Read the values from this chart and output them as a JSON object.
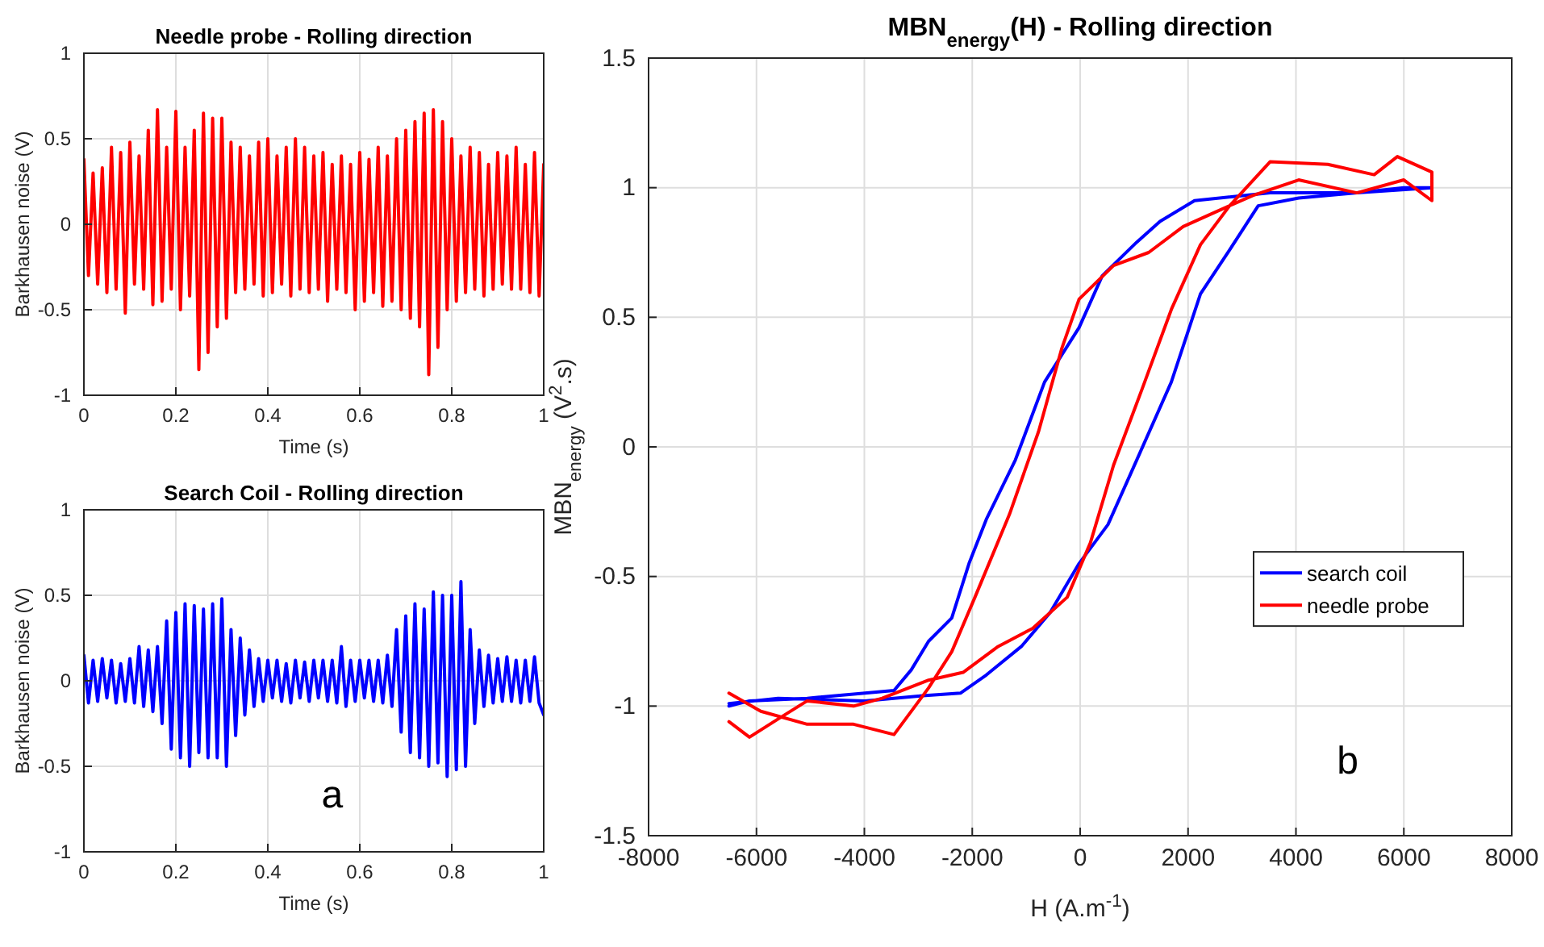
{
  "chart_data": [
    {
      "type": "line",
      "title": "Needle probe - Rolling direction",
      "xlabel": "Time (s)",
      "ylabel": "Barkhausen noise (V)",
      "xlim": [
        0,
        1
      ],
      "xticks": [
        0,
        0.2,
        0.4,
        0.6,
        0.8,
        1
      ],
      "ylim": [
        -1,
        1
      ],
      "yticks": [
        -1,
        -0.5,
        0,
        0.5,
        1
      ],
      "grid": true,
      "x": [
        0,
        0.01,
        0.02,
        0.03,
        0.04,
        0.05,
        0.06,
        0.07,
        0.08,
        0.09,
        0.1,
        0.11,
        0.12,
        0.13,
        0.14,
        0.15,
        0.16,
        0.17,
        0.18,
        0.19,
        0.2,
        0.21,
        0.22,
        0.23,
        0.24,
        0.25,
        0.26,
        0.27,
        0.28,
        0.29,
        0.3,
        0.31,
        0.32,
        0.33,
        0.34,
        0.35,
        0.36,
        0.37,
        0.38,
        0.39,
        0.4,
        0.41,
        0.42,
        0.43,
        0.44,
        0.45,
        0.46,
        0.47,
        0.48,
        0.49,
        0.5,
        0.51,
        0.52,
        0.53,
        0.54,
        0.55,
        0.56,
        0.57,
        0.58,
        0.59,
        0.6,
        0.61,
        0.62,
        0.63,
        0.64,
        0.65,
        0.66,
        0.67,
        0.68,
        0.69,
        0.7,
        0.71,
        0.72,
        0.73,
        0.74,
        0.75,
        0.76,
        0.77,
        0.78,
        0.79,
        0.8,
        0.81,
        0.82,
        0.83,
        0.84,
        0.85,
        0.86,
        0.87,
        0.88,
        0.89,
        0.9,
        0.91,
        0.92,
        0.93,
        0.94,
        0.95,
        0.96,
        0.97,
        0.98,
        0.99,
        1
      ],
      "series": [
        {
          "color": "#ff0000",
          "values": [
            0.38,
            -0.3,
            0.3,
            -0.35,
            0.33,
            -0.4,
            0.45,
            -0.38,
            0.42,
            -0.52,
            0.48,
            -0.35,
            0.4,
            -0.38,
            0.55,
            -0.47,
            0.67,
            -0.45,
            0.45,
            -0.38,
            0.66,
            -0.5,
            0.45,
            -0.42,
            0.55,
            -0.85,
            0.65,
            -0.75,
            0.62,
            -0.6,
            0.62,
            -0.55,
            0.48,
            -0.4,
            0.45,
            -0.38,
            0.4,
            -0.35,
            0.48,
            -0.42,
            0.5,
            -0.4,
            0.4,
            -0.35,
            0.45,
            -0.42,
            0.5,
            -0.38,
            0.45,
            -0.4,
            0.4,
            -0.38,
            0.42,
            -0.45,
            0.35,
            -0.38,
            0.4,
            -0.4,
            0.35,
            -0.5,
            0.42,
            -0.45,
            0.38,
            -0.4,
            0.45,
            -0.48,
            0.4,
            -0.45,
            0.5,
            -0.5,
            0.55,
            -0.55,
            0.6,
            -0.6,
            0.65,
            -0.88,
            0.67,
            -0.72,
            0.6,
            -0.5,
            0.5,
            -0.45,
            0.4,
            -0.4,
            0.45,
            -0.38,
            0.42,
            -0.42,
            0.35,
            -0.38,
            0.42,
            -0.35,
            0.4,
            -0.38,
            0.45,
            -0.38,
            0.35,
            -0.4,
            0.42,
            -0.42,
            0.35
          ]
        }
      ]
    },
    {
      "type": "line",
      "title": "Search Coil - Rolling direction",
      "xlabel": "Time (s)",
      "ylabel": "Barkhausen noise (V)",
      "xlim": [
        0,
        1
      ],
      "xticks": [
        0,
        0.2,
        0.4,
        0.6,
        0.8,
        1
      ],
      "ylim": [
        -1,
        1
      ],
      "yticks": [
        -1,
        -0.5,
        0,
        0.5,
        1
      ],
      "grid": true,
      "annotations": [
        "a"
      ],
      "x": [
        0,
        0.01,
        0.02,
        0.03,
        0.04,
        0.05,
        0.06,
        0.07,
        0.08,
        0.09,
        0.1,
        0.11,
        0.12,
        0.13,
        0.14,
        0.15,
        0.16,
        0.17,
        0.18,
        0.19,
        0.2,
        0.21,
        0.22,
        0.23,
        0.24,
        0.25,
        0.26,
        0.27,
        0.28,
        0.29,
        0.3,
        0.31,
        0.32,
        0.33,
        0.34,
        0.35,
        0.36,
        0.37,
        0.38,
        0.39,
        0.4,
        0.41,
        0.42,
        0.43,
        0.44,
        0.45,
        0.46,
        0.47,
        0.48,
        0.49,
        0.5,
        0.51,
        0.52,
        0.53,
        0.54,
        0.55,
        0.56,
        0.57,
        0.58,
        0.59,
        0.6,
        0.61,
        0.62,
        0.63,
        0.64,
        0.65,
        0.66,
        0.67,
        0.68,
        0.69,
        0.7,
        0.71,
        0.72,
        0.73,
        0.74,
        0.75,
        0.76,
        0.77,
        0.78,
        0.79,
        0.8,
        0.81,
        0.82,
        0.83,
        0.84,
        0.85,
        0.86,
        0.87,
        0.88,
        0.89,
        0.9,
        0.91,
        0.92,
        0.93,
        0.94,
        0.95,
        0.96,
        0.97,
        0.98,
        0.99,
        1
      ],
      "series": [
        {
          "color": "#0000ff",
          "values": [
            0.15,
            -0.13,
            0.12,
            -0.12,
            0.13,
            -0.1,
            0.12,
            -0.13,
            0.1,
            -0.12,
            0.13,
            -0.13,
            0.2,
            -0.15,
            0.18,
            -0.18,
            0.2,
            -0.25,
            0.35,
            -0.4,
            0.4,
            -0.45,
            0.45,
            -0.5,
            0.44,
            -0.42,
            0.42,
            -0.45,
            0.45,
            -0.45,
            0.48,
            -0.5,
            0.3,
            -0.32,
            0.25,
            -0.2,
            0.18,
            -0.15,
            0.13,
            -0.12,
            0.12,
            -0.1,
            0.12,
            -0.12,
            0.1,
            -0.13,
            0.12,
            -0.1,
            0.11,
            -0.12,
            0.12,
            -0.1,
            0.12,
            -0.12,
            0.12,
            -0.13,
            0.2,
            -0.15,
            0.12,
            -0.12,
            0.12,
            -0.1,
            0.12,
            -0.12,
            0.12,
            -0.13,
            0.15,
            -0.15,
            0.3,
            -0.3,
            0.38,
            -0.42,
            0.45,
            -0.45,
            0.42,
            -0.5,
            0.52,
            -0.48,
            0.5,
            -0.56,
            0.5,
            -0.52,
            0.58,
            -0.5,
            0.3,
            -0.25,
            0.18,
            -0.15,
            0.15,
            -0.13,
            0.13,
            -0.12,
            0.14,
            -0.12,
            0.12,
            -0.13,
            0.12,
            -0.12,
            0.14,
            -0.13,
            -0.2
          ]
        }
      ]
    },
    {
      "type": "line",
      "title": "MBN$_{energy}$(H) - Rolling direction",
      "xlabel": "H (A.m$^{-1}$)",
      "ylabel": "MBN$_{energy}$ (V$^{2}$.s)",
      "xlim": [
        -8000,
        8000
      ],
      "xticks": [
        -8000,
        -6000,
        -4000,
        -2000,
        0,
        2000,
        4000,
        6000,
        8000
      ],
      "ylim": [
        -1.5,
        1.5
      ],
      "yticks": [
        -1.5,
        -1,
        -0.5,
        0,
        0.5,
        1,
        1.5
      ],
      "grid": true,
      "legend": "right",
      "annotations": [
        "b"
      ],
      "series": [
        {
          "name": "search coil",
          "color": "#0000ff",
          "x": [
            -6510,
            -5600,
            -3990,
            -2920,
            -2220,
            -1740,
            -1090,
            -560,
            -20,
            515,
            1050,
            1690,
            2230,
            2770,
            3300,
            4050,
            5130,
            6000,
            6520,
            5130,
            3520,
            2120,
            1480,
            1050,
            410,
            -20,
            -660,
            -1200,
            -1740,
            -2060,
            -2380,
            -2810,
            -3130,
            -3450,
            -3990,
            -5060,
            -6130,
            -6510
          ],
          "values": [
            -0.99,
            -0.97,
            -0.98,
            -0.96,
            -0.95,
            -0.88,
            -0.77,
            -0.64,
            -0.45,
            -0.3,
            -0.05,
            0.25,
            0.59,
            0.76,
            0.93,
            0.96,
            0.98,
            1,
            1,
            0.98,
            0.98,
            0.95,
            0.87,
            0.79,
            0.66,
            0.46,
            0.25,
            -0.05,
            -0.28,
            -0.45,
            -0.66,
            -0.75,
            -0.86,
            -0.94,
            -0.95,
            -0.97,
            -0.98,
            -1
          ]
        },
        {
          "name": "needle probe",
          "color": "#ff0000",
          "x": [
            -6510,
            -6130,
            -5600,
            -5060,
            -4200,
            -3670,
            -2810,
            -2170,
            -1520,
            -880,
            -240,
            190,
            620,
            1160,
            1690,
            2230,
            2770,
            3520,
            4590,
            5450,
            5880,
            6520,
            6520,
            6000,
            5130,
            4050,
            3200,
            2550,
            1910,
            1270,
            620,
            -20,
            -340,
            -770,
            -1310,
            -1950,
            -2380,
            -2810,
            -3450,
            -4200,
            -5060,
            -5920,
            -6510
          ],
          "values": [
            -1.06,
            -1.12,
            -1.05,
            -0.98,
            -1,
            -0.97,
            -0.9,
            -0.87,
            -0.77,
            -0.7,
            -0.58,
            -0.37,
            -0.07,
            0.23,
            0.53,
            0.78,
            0.93,
            1.1,
            1.09,
            1.05,
            1.12,
            1.06,
            0.95,
            1.03,
            0.98,
            1.03,
            0.97,
            0.91,
            0.85,
            0.75,
            0.7,
            0.57,
            0.38,
            0.06,
            -0.26,
            -0.58,
            -0.79,
            -0.93,
            -1.11,
            -1.07,
            -1.07,
            -1.02,
            -0.95
          ]
        }
      ]
    }
  ]
}
